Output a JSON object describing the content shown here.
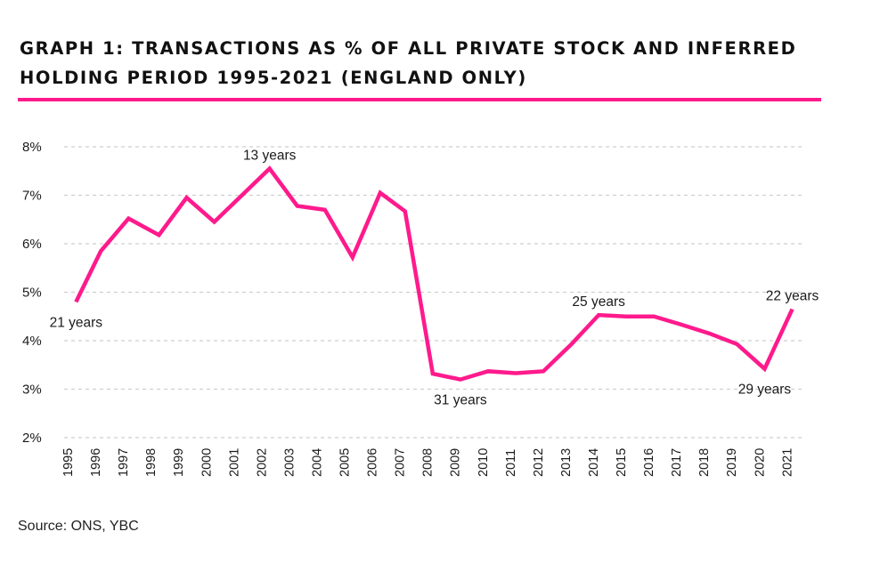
{
  "title_lines": [
    "GRAPH 1: TRANSACTIONS AS % OF ALL PRIVATE STOCK AND INFERRED",
    "HOLDING PERIOD 1995-2021 (ENGLAND ONLY)"
  ],
  "source": "Source: ONS, YBC",
  "colors": {
    "accent": "#ff1a8c",
    "grid": "#cfcfcf",
    "text": "#1a1a1a"
  },
  "chart_data": {
    "type": "line",
    "title": "GRAPH 1: TRANSACTIONS AS % OF ALL PRIVATE STOCK AND INFERRED HOLDING PERIOD 1995-2021 (ENGLAND ONLY)",
    "xlabel": "",
    "ylabel": "",
    "ylim": [
      2,
      8
    ],
    "y_ticks": [
      2,
      3,
      4,
      5,
      6,
      7,
      8
    ],
    "y_tick_labels": [
      "2%",
      "3%",
      "4%",
      "5%",
      "6%",
      "7%",
      "8%"
    ],
    "grid": "horizontal dashed",
    "legend": "none",
    "x": [
      "1995",
      "1996",
      "1997",
      "1998",
      "1999",
      "2000",
      "2001",
      "2002",
      "2003",
      "2004",
      "2005",
      "2006",
      "2007",
      "2008",
      "2009",
      "2010",
      "2011",
      "2012",
      "2013",
      "2014",
      "2015",
      "2016",
      "2017",
      "2018",
      "2019",
      "2020",
      "2021"
    ],
    "x_points": [
      1995.3,
      1996.2,
      1997.2,
      1998.3,
      1999.3,
      2000.3,
      2001.3,
      2002.3,
      2003.3,
      2004.3,
      2005.3,
      2006.3,
      2007.2,
      2008.2,
      2009.2,
      2010.2,
      2011.2,
      2012.2,
      2013.2,
      2014.2,
      2015.2,
      2016.2,
      2017.2,
      2018.2,
      2019.2,
      2020.2,
      2021.2
    ],
    "series": [
      {
        "values": [
          4.8,
          5.85,
          6.52,
          6.18,
          6.95,
          6.45,
          7.0,
          7.55,
          6.78,
          6.7,
          5.72,
          7.05,
          6.67,
          3.32,
          3.2,
          3.37,
          3.33,
          3.37,
          3.92,
          4.53,
          4.5,
          4.5,
          4.33,
          4.15,
          3.93,
          3.42,
          4.65
        ]
      }
    ],
    "annotations": [
      {
        "text": "21 years",
        "x": 1995.3,
        "y": 4.8,
        "pos": "below"
      },
      {
        "text": "13 years",
        "x": 2002.3,
        "y": 7.55,
        "pos": "above"
      },
      {
        "text": "31 years",
        "x": 2009.2,
        "y": 3.2,
        "pos": "below"
      },
      {
        "text": "25 years",
        "x": 2014.2,
        "y": 4.53,
        "pos": "above"
      },
      {
        "text": "29 years",
        "x": 2020.2,
        "y": 3.42,
        "pos": "below"
      },
      {
        "text": "22 years",
        "x": 2021.2,
        "y": 4.65,
        "pos": "above"
      }
    ]
  }
}
